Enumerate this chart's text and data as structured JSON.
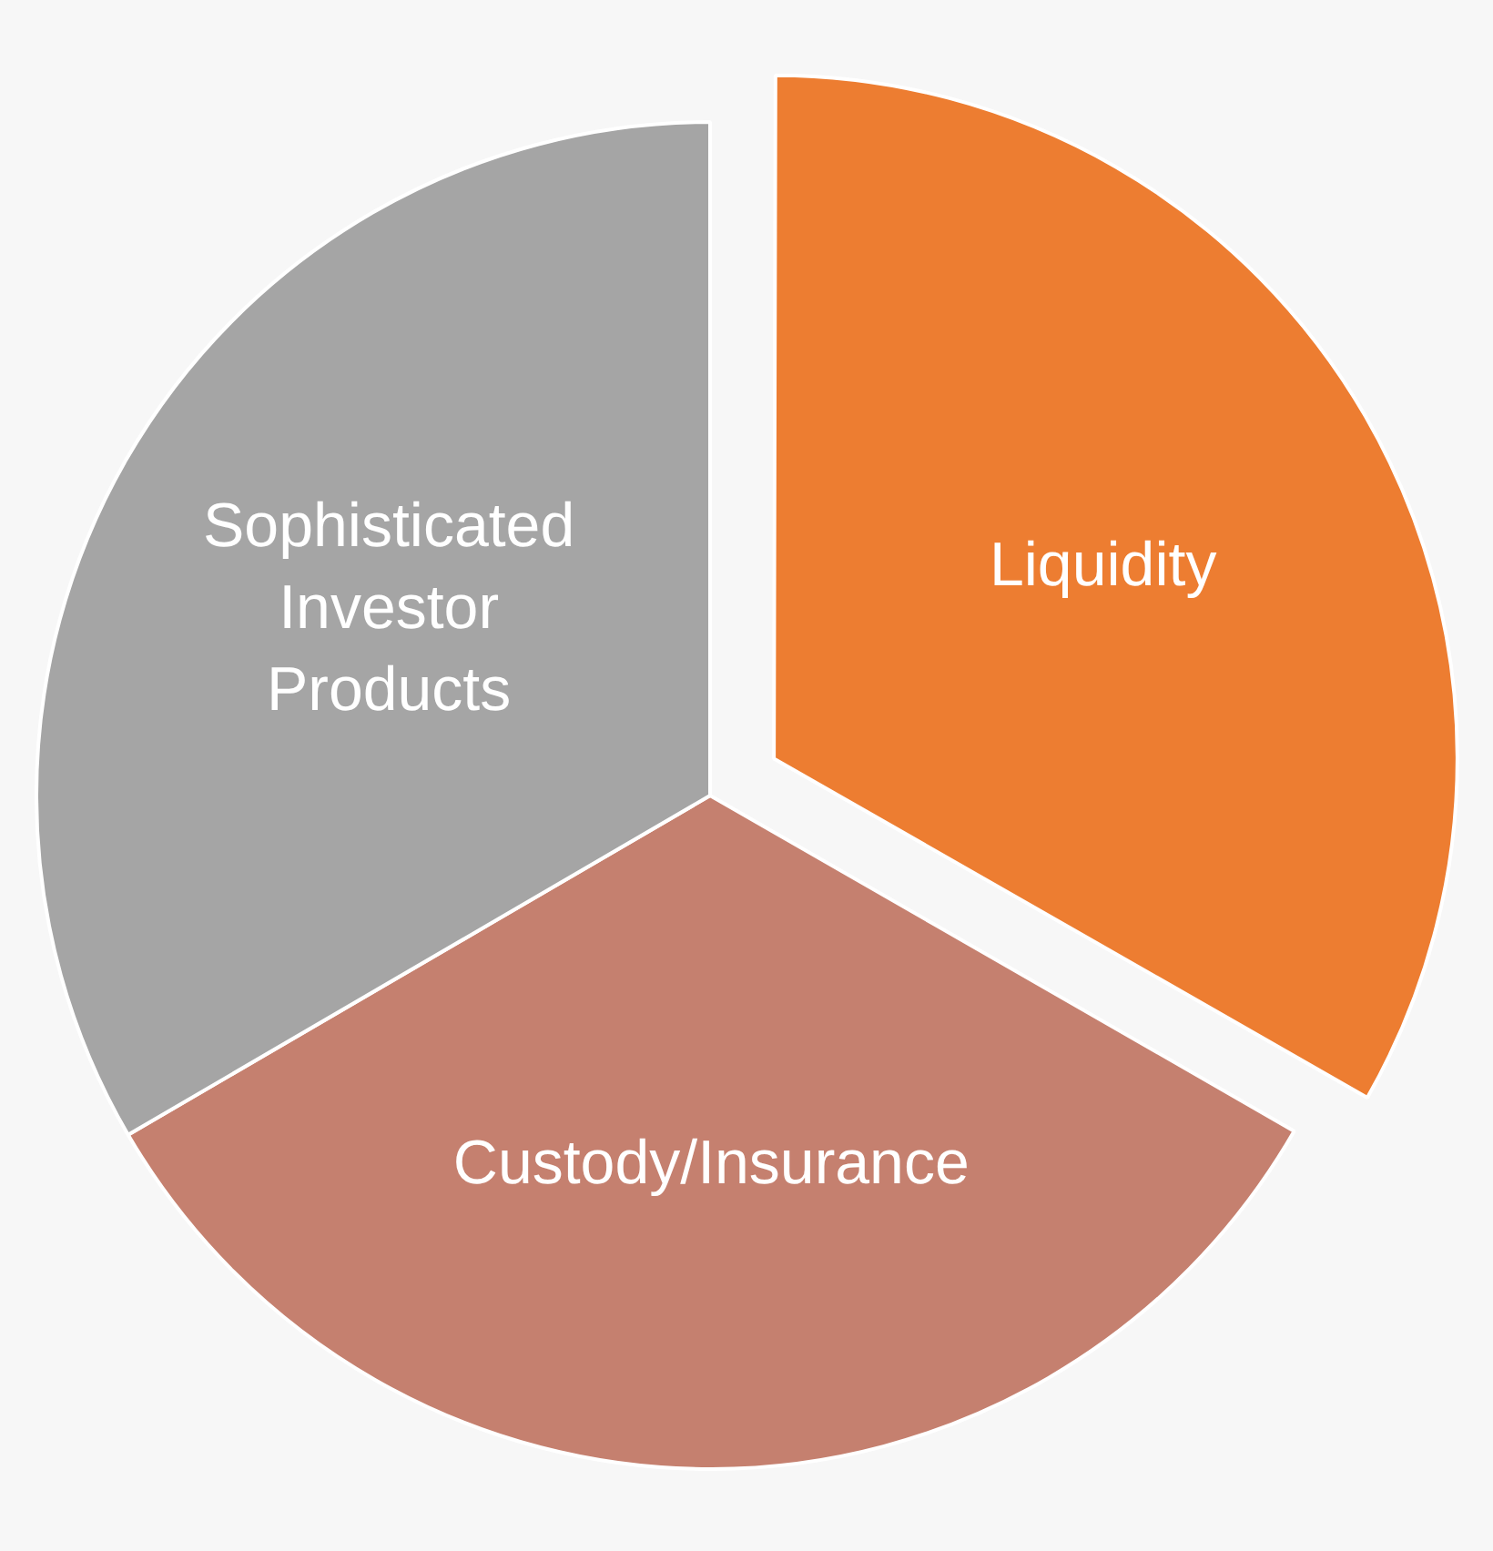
{
  "chart_data": {
    "type": "pie",
    "categories": [
      "Liquidity",
      "Custody/Insurance",
      "Sophisticated Investor Products"
    ],
    "values": [
      33.3,
      33.3,
      33.4
    ],
    "colors": [
      "#ed7d31",
      "#c5806f",
      "#a5a5a5"
    ]
  }
}
